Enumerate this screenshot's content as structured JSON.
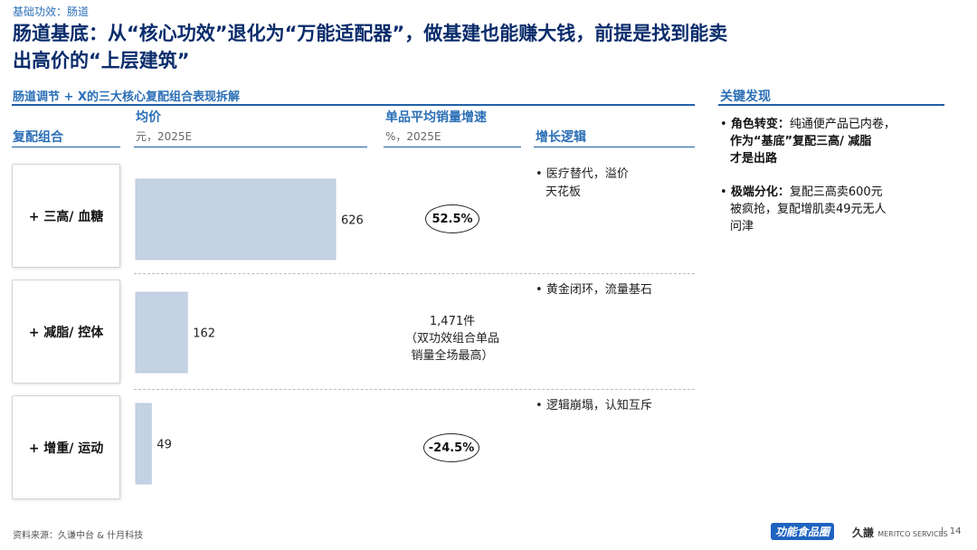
{
  "header": {
    "section_tag": "基础功效：肠道",
    "title_line1": "肠道基底：从“核心功效”退化为“万能适配器”，做基建也能赚大钱，前提是找到能卖",
    "title_line2": "出高价的“上层建筑”"
  },
  "left_panel": {
    "title": "肠道调节 + X的三大核心复配组合表现拆解",
    "col_combo": "复配组合",
    "col_price": "均价",
    "col_price_unit": "元，2025E",
    "col_growth": "单品平均销量增速",
    "col_growth_unit": "%，2025E",
    "col_logic": "增长逻辑"
  },
  "chart_data": {
    "type": "bar",
    "orientation": "horizontal",
    "categories": [
      "+ 三高/ 血糖",
      "+ 减脂/ 控体",
      "+ 增重/ 运动"
    ],
    "series": [
      {
        "values": [
          626,
          162,
          49
        ]
      }
    ],
    "value_labels": [
      "626",
      "162",
      "49"
    ],
    "xlim": [
      0,
      626
    ],
    "grid": false
  },
  "growth": {
    "row1": "52.5%",
    "row2_line1": "1,471件",
    "row2_line2": "（双功效组合单品",
    "row2_line3": "销量全场最高）",
    "row3": "-24.5%"
  },
  "logic": {
    "row1_line1": "医疗替代，溢价",
    "row1_line2": "天花板",
    "row2": "黄金闭环，流量基石",
    "row3": "逻辑崩塌，认知互斥"
  },
  "right_panel": {
    "title": "关键发现",
    "finding1_bold": "角色转变：",
    "finding1_text_a": "纯通便产品已内卷，",
    "finding1_bold_b": "作为“基底”复配三高/ 减脂",
    "finding1_bold_c": "才是出路",
    "finding2_bold": "极端分化：",
    "finding2_text_a": "复配三高卖600元",
    "finding2_text_b": "被疯抢，复配增肌卖49元无人",
    "finding2_text_c": "问津"
  },
  "footer": {
    "source": "资料来源：久谦中台 & 什月科技",
    "logo_left": "功能食品圈",
    "logo_right_cn": "久謙",
    "logo_right_en": "MERITCO SERVICES",
    "separator": "|",
    "page_number": "14"
  },
  "colors": {
    "title": "#0a2c6b",
    "accent": "#2b6fb6",
    "bar": "#c5d2e4"
  }
}
